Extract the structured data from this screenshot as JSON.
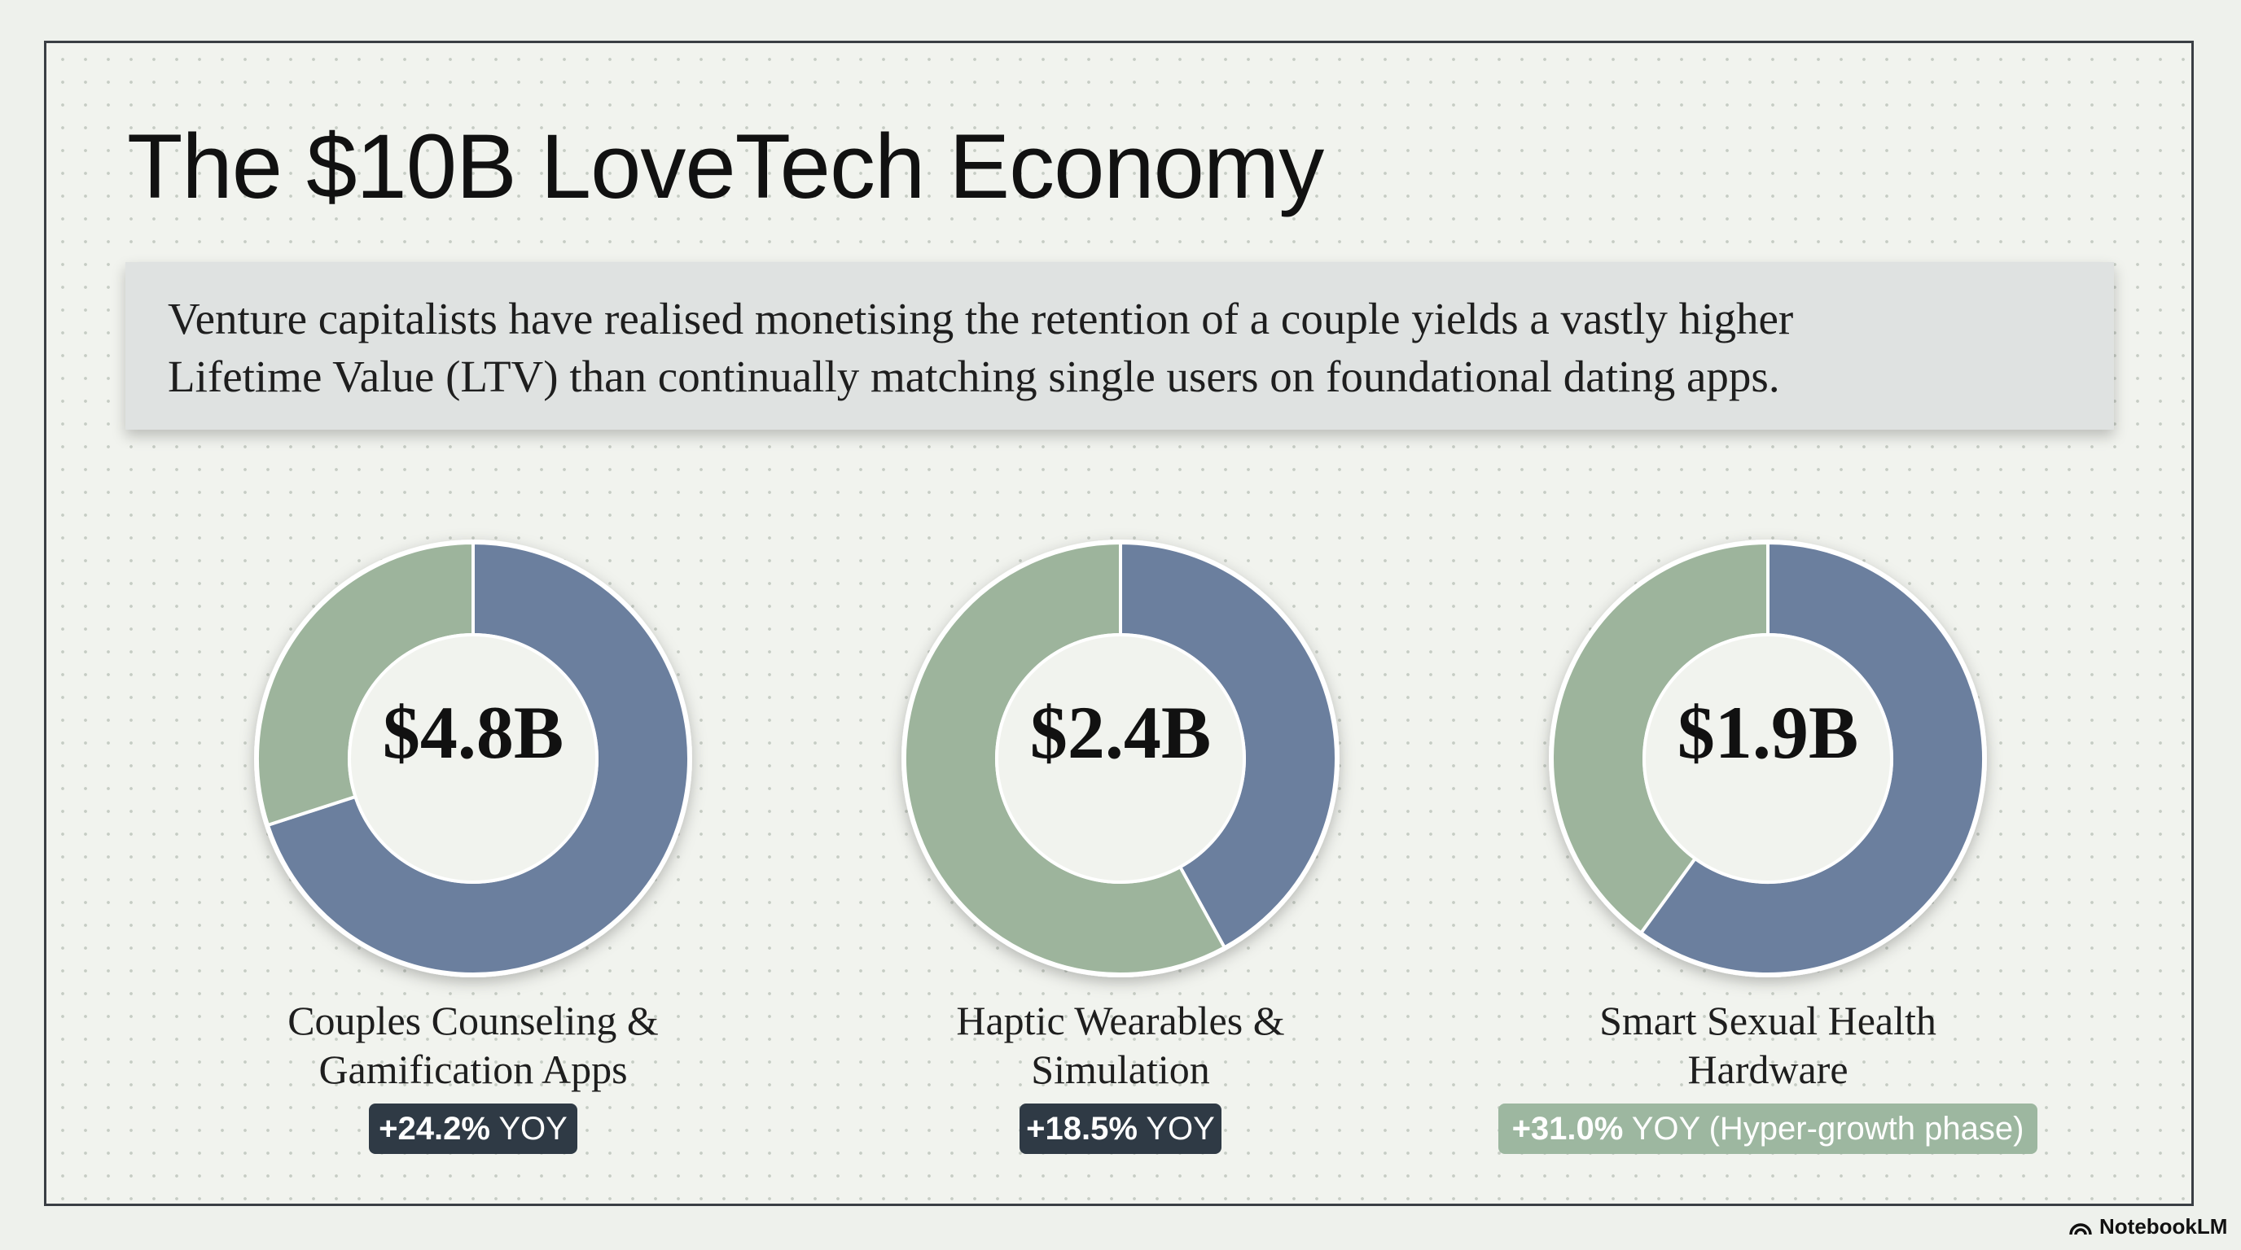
{
  "slide": {
    "title": "The $10B LoveTech Economy",
    "subtitle_lines": [
      "Venture capitalists have realised monetising the retention of a couple yields a vastly higher",
      "Lifetime Value (LTV) than continually matching single users on foundational dating apps."
    ]
  },
  "chart_data": [
    {
      "type": "pie",
      "center_label": "$4.8B",
      "category": [
        "Couples Counseling &",
        "Gamification Apps"
      ],
      "growth": {
        "value": "+24.2%",
        "suffix": " YOY"
      },
      "slices": [
        {
          "share": 0.7,
          "color": "#6b7f9e"
        },
        {
          "share": 0.3,
          "color": "#9db49c"
        }
      ]
    },
    {
      "type": "pie",
      "center_label": "$2.4B",
      "category": [
        "Haptic Wearables &",
        "Simulation"
      ],
      "growth": {
        "value": "+18.5%",
        "suffix": " YOY"
      },
      "slices": [
        {
          "share": 0.42,
          "color": "#6b7f9e"
        },
        {
          "share": 0.58,
          "color": "#9db49c"
        }
      ]
    },
    {
      "type": "pie",
      "center_label": "$1.9B",
      "category": [
        "Smart Sexual Health",
        "Hardware"
      ],
      "growth": {
        "value": "+31.0%",
        "suffix": " YOY (Hyper-growth phase)"
      },
      "slices": [
        {
          "share": 0.6,
          "color": "#6b7f9e"
        },
        {
          "share": 0.4,
          "color": "#9db49c"
        }
      ]
    }
  ],
  "branding": {
    "label": "NotebookLM"
  },
  "colors": {
    "primary": "#6b7f9e",
    "secondary": "#9db49c",
    "badge_dark": "#2f3a45",
    "badge_light": "#9db7a0"
  }
}
